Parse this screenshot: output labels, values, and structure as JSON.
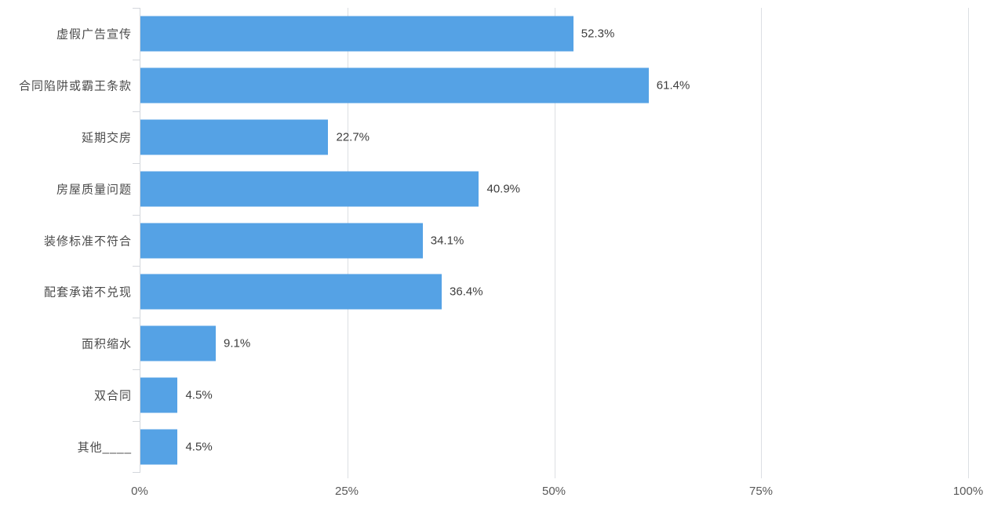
{
  "chart_data": {
    "type": "bar",
    "orientation": "horizontal",
    "title": "",
    "xlabel": "",
    "ylabel": "",
    "xlim": [
      0,
      100
    ],
    "grid": true,
    "bar_color": "#55a2e5",
    "categories": [
      "虚假广告宣传",
      "合同陷阱或霸王条款",
      "延期交房",
      "房屋质量问题",
      "装修标准不符合",
      "配套承诺不兑现",
      "面积缩水",
      "双合同",
      "其他____"
    ],
    "values": [
      52.3,
      61.4,
      22.7,
      40.9,
      34.1,
      36.4,
      9.1,
      4.5,
      4.5
    ],
    "value_labels": [
      "52.3%",
      "61.4%",
      "22.7%",
      "40.9%",
      "34.1%",
      "36.4%",
      "9.1%",
      "4.5%",
      "4.5%"
    ],
    "x_axis": {
      "ticks": [
        {
          "label": "0%",
          "pos": 0
        },
        {
          "label": "25%",
          "pos": 25
        },
        {
          "label": "50%",
          "pos": 50
        },
        {
          "label": "75%",
          "pos": 75
        },
        {
          "label": "100%",
          "pos": 100
        }
      ]
    }
  },
  "colors": {
    "bar": "#55a2e5",
    "gridline": "#dcdfe3",
    "axis_line": "#d4d7dc",
    "category_text": "#4a4a4a",
    "value_text": "#3d3d3d",
    "tick_text": "#595959",
    "background": "#ffffff"
  }
}
